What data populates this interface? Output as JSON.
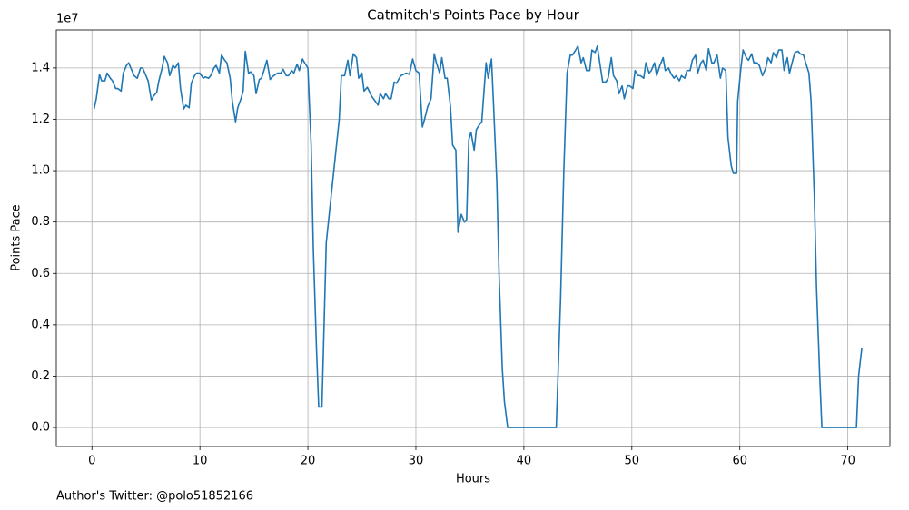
{
  "chart_data": {
    "type": "line",
    "title": "Catmitch's Points Pace by Hour",
    "xlabel": "Hours",
    "ylabel": "Points Pace",
    "y_exponent": "1e7",
    "annotation": "Author's Twitter: @polo51852166",
    "color": "#1f77b4",
    "grid": true,
    "xlim": [
      -3.3,
      73.9
    ],
    "ylim": [
      -740000,
      15480000
    ],
    "xticks": [
      0,
      10,
      20,
      30,
      40,
      50,
      60,
      70
    ],
    "yticks": [
      {
        "value": 0,
        "label": "0.0"
      },
      {
        "value": 2000000,
        "label": "0.2"
      },
      {
        "value": 4000000,
        "label": "0.4"
      },
      {
        "value": 6000000,
        "label": "0.6"
      },
      {
        "value": 8000000,
        "label": "0.8"
      },
      {
        "value": 10000000,
        "label": "1.0"
      },
      {
        "value": 12000000,
        "label": "1.2"
      },
      {
        "value": 14000000,
        "label": "1.4"
      }
    ],
    "x": [
      0.2,
      0.4,
      0.7,
      0.9,
      1.2,
      1.4,
      1.7,
      1.9,
      2.2,
      2.4,
      2.7,
      2.9,
      3.2,
      3.4,
      3.7,
      3.9,
      4.2,
      4.5,
      4.7,
      5.0,
      5.2,
      5.5,
      5.7,
      6.0,
      6.2,
      6.5,
      6.7,
      7.0,
      7.2,
      7.5,
      7.7,
      8.0,
      8.2,
      8.5,
      8.7,
      9.0,
      9.2,
      9.5,
      9.7,
      10.0,
      10.3,
      10.5,
      10.8,
      11.0,
      11.3,
      11.5,
      11.8,
      12.0,
      12.3,
      12.5,
      12.8,
      13.0,
      13.3,
      13.5,
      13.8,
      14.0,
      14.2,
      14.5,
      14.7,
      15.0,
      15.2,
      15.5,
      15.7,
      16.0,
      16.2,
      16.5,
      16.7,
      17.0,
      17.2,
      17.5,
      17.7,
      18.0,
      18.2,
      18.5,
      18.7,
      19.0,
      19.2,
      19.5,
      19.7,
      20.0,
      20.3,
      20.5,
      20.8,
      21.0,
      21.3,
      21.5,
      21.7,
      22.4,
      22.9,
      23.1,
      23.4,
      23.7,
      23.9,
      24.2,
      24.5,
      24.7,
      25.0,
      25.2,
      25.5,
      25.9,
      26.5,
      26.7,
      27.0,
      27.2,
      27.5,
      27.7,
      28.0,
      28.2,
      28.6,
      29.1,
      29.4,
      29.7,
      30.0,
      30.3,
      30.6,
      30.8,
      31.1,
      31.4,
      31.7,
      31.9,
      32.2,
      32.4,
      32.7,
      32.9,
      33.2,
      33.4,
      33.7,
      33.9,
      34.2,
      34.5,
      34.7,
      34.9,
      35.1,
      35.4,
      35.6,
      35.9,
      36.1,
      36.5,
      36.7,
      37.0,
      37.2,
      37.5,
      37.7,
      38.0,
      38.2,
      38.5,
      43.0,
      43.4,
      43.7,
      44.0,
      44.3,
      44.5,
      44.8,
      45.0,
      45.3,
      45.5,
      45.8,
      46.1,
      46.3,
      46.6,
      46.8,
      47.1,
      47.3,
      47.6,
      47.8,
      48.1,
      48.3,
      48.6,
      48.8,
      49.1,
      49.3,
      49.6,
      49.8,
      50.1,
      50.3,
      50.6,
      50.8,
      51.1,
      51.3,
      51.6,
      51.8,
      52.1,
      52.3,
      52.6,
      52.9,
      53.1,
      53.4,
      53.6,
      53.9,
      54.1,
      54.4,
      54.6,
      54.9,
      55.1,
      55.4,
      55.6,
      55.9,
      56.1,
      56.4,
      56.6,
      56.9,
      57.1,
      57.4,
      57.6,
      57.9,
      58.2,
      58.4,
      58.7,
      58.9,
      59.2,
      59.4,
      59.7,
      59.8,
      60.1,
      60.3,
      60.6,
      60.8,
      61.1,
      61.3,
      61.6,
      61.8,
      62.1,
      62.4,
      62.6,
      62.9,
      63.1,
      63.4,
      63.6,
      63.9,
      64.1,
      64.4,
      64.6,
      64.9,
      65.1,
      65.4,
      65.6,
      65.9,
      66.1,
      66.4,
      66.6,
      66.9,
      67.1,
      67.4,
      67.6,
      70.8,
      71.0,
      71.3
    ],
    "values": [
      12400000,
      12800000,
      13750000,
      13500000,
      13500000,
      13800000,
      13600000,
      13500000,
      13200000,
      13200000,
      13100000,
      13800000,
      14100000,
      14200000,
      13900000,
      13700000,
      13600000,
      14000000,
      14000000,
      13700000,
      13500000,
      12750000,
      12900000,
      13050000,
      13500000,
      14000000,
      14450000,
      14200000,
      13700000,
      14100000,
      14000000,
      14200000,
      13200000,
      12400000,
      12550000,
      12450000,
      13400000,
      13700000,
      13800000,
      13800000,
      13600000,
      13650000,
      13600000,
      13700000,
      14000000,
      14100000,
      13800000,
      14500000,
      14300000,
      14200000,
      13600000,
      12700000,
      11900000,
      12450000,
      12800000,
      13100000,
      14650000,
      13800000,
      13850000,
      13700000,
      13000000,
      13550000,
      13600000,
      14000000,
      14300000,
      13550000,
      13650000,
      13750000,
      13800000,
      13800000,
      13950000,
      13700000,
      13700000,
      13900000,
      13800000,
      14150000,
      13900000,
      14350000,
      14200000,
      14000000,
      11000000,
      7000000,
      3000000,
      800000,
      800000,
      4000000,
      7200000,
      10000000,
      12000000,
      13700000,
      13700000,
      14300000,
      13700000,
      14550000,
      14400000,
      13600000,
      13800000,
      13100000,
      13250000,
      12900000,
      12550000,
      13000000,
      12800000,
      13000000,
      12800000,
      12800000,
      13450000,
      13400000,
      13700000,
      13800000,
      13750000,
      14350000,
      13900000,
      13800000,
      11700000,
      12000000,
      12500000,
      12800000,
      14550000,
      14200000,
      13800000,
      14400000,
      13600000,
      13600000,
      12500000,
      11000000,
      10800000,
      7600000,
      8300000,
      8000000,
      8100000,
      11200000,
      11500000,
      10800000,
      11600000,
      11800000,
      11900000,
      14200000,
      13600000,
      14350000,
      12500000,
      9500000,
      6000000,
      2300000,
      1000000,
      0,
      0,
      5000000,
      10000000,
      13800000,
      14500000,
      14500000,
      14700000,
      14850000,
      14200000,
      14400000,
      13900000,
      13900000,
      14700000,
      14600000,
      14850000,
      14000000,
      13450000,
      13450000,
      13600000,
      14400000,
      13700000,
      13500000,
      13000000,
      13300000,
      12800000,
      13300000,
      13300000,
      13200000,
      13900000,
      13700000,
      13700000,
      13600000,
      14200000,
      13800000,
      13900000,
      14200000,
      13700000,
      14100000,
      14400000,
      13900000,
      14000000,
      13800000,
      13600000,
      13700000,
      13500000,
      13700000,
      13600000,
      13900000,
      13900000,
      14300000,
      14500000,
      13800000,
      14200000,
      14300000,
      13900000,
      14750000,
      14200000,
      14200000,
      14500000,
      13600000,
      14000000,
      13900000,
      11300000,
      10200000,
      9900000,
      9900000,
      12700000,
      14000000,
      14700000,
      14400000,
      14300000,
      14550000,
      14200000,
      14200000,
      14100000,
      13700000,
      14000000,
      14400000,
      14200000,
      14600000,
      14400000,
      14700000,
      14700000,
      13900000,
      14400000,
      13800000,
      14300000,
      14600000,
      14650000,
      14550000,
      14500000,
      14200000,
      13800000,
      12700000,
      9000000,
      5500000,
      2000000,
      0,
      0,
      2000000,
      3100000
    ]
  }
}
